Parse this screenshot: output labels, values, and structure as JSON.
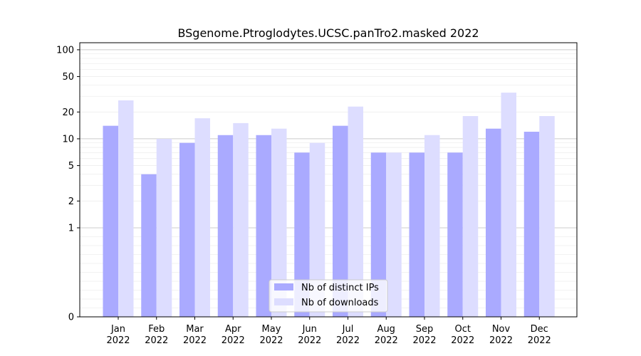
{
  "chart_data": {
    "type": "bar",
    "title": "BSgenome.Ptroglodytes.UCSC.panTro2.masked 2022",
    "xlabel": "",
    "ylabel": "",
    "yscale": "symlog",
    "ylim": [
      0,
      120
    ],
    "yticks": [
      0,
      1,
      2,
      5,
      10,
      20,
      50,
      100
    ],
    "ytick_labels": [
      "0",
      "1",
      "2",
      "5",
      "10",
      "20",
      "50",
      "100"
    ],
    "grid": "y-major",
    "legend_position": "bottom-center",
    "categories": [
      {
        "month": "Jan",
        "year": "2022"
      },
      {
        "month": "Feb",
        "year": "2022"
      },
      {
        "month": "Mar",
        "year": "2022"
      },
      {
        "month": "Apr",
        "year": "2022"
      },
      {
        "month": "May",
        "year": "2022"
      },
      {
        "month": "Jun",
        "year": "2022"
      },
      {
        "month": "Jul",
        "year": "2022"
      },
      {
        "month": "Aug",
        "year": "2022"
      },
      {
        "month": "Sep",
        "year": "2022"
      },
      {
        "month": "Oct",
        "year": "2022"
      },
      {
        "month": "Nov",
        "year": "2022"
      },
      {
        "month": "Dec",
        "year": "2022"
      }
    ],
    "series": [
      {
        "name": "Nb of distinct IPs",
        "color": "#aaaaff",
        "values": [
          14,
          4,
          9,
          11,
          11,
          7,
          14,
          7,
          7,
          7,
          13,
          12
        ]
      },
      {
        "name": "Nb of downloads",
        "color": "#ddddff",
        "values": [
          27,
          10,
          17,
          15,
          13,
          9,
          23,
          7,
          11,
          18,
          33,
          18
        ]
      }
    ]
  }
}
